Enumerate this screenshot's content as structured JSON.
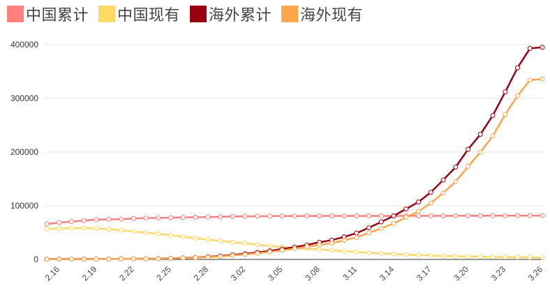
{
  "legend": [
    {
      "label": "中国累计",
      "color": "#ff7f7f"
    },
    {
      "label": "中国现有",
      "color": "#ffd966"
    },
    {
      "label": "海外累计",
      "color": "#990011"
    },
    {
      "label": "海外现有",
      "color": "#ffa64d"
    }
  ],
  "chart_data": {
    "type": "line",
    "title": "",
    "xlabel": "",
    "ylabel": "",
    "ylim": [
      0,
      400000
    ],
    "yticks": [
      "0",
      "100000",
      "200000",
      "300000",
      "400000"
    ],
    "grid": true,
    "legend_position": "top-left",
    "x": [
      "2.15",
      "2.16",
      "2.17",
      "2.18",
      "2.19",
      "2.20",
      "2.21",
      "2.22",
      "2.23",
      "2.24",
      "2.25",
      "2.26",
      "2.27",
      "2.28",
      "2.29",
      "3.01",
      "3.02",
      "3.03",
      "3.04",
      "3.05",
      "3.06",
      "3.07",
      "3.08",
      "3.09",
      "3.10",
      "3.11",
      "3.12",
      "3.13",
      "3.14",
      "3.15",
      "3.16",
      "3.17",
      "3.18",
      "3.19",
      "3.20",
      "3.21",
      "3.22",
      "3.23",
      "3.24",
      "3.25",
      "3.26"
    ],
    "xtick_labels": [
      "2.16",
      "2.19",
      "2.22",
      "2.25",
      "2.28",
      "3.02",
      "3.05",
      "3.08",
      "3.11",
      "3.14",
      "3.17",
      "3.20",
      "3.23",
      "3.26"
    ],
    "series": [
      {
        "name": "中国累计",
        "color": "#ff7f7f",
        "values": [
          66000,
          68500,
          70500,
          72400,
          74200,
          74600,
          75100,
          76300,
          77000,
          77300,
          77800,
          78200,
          78600,
          79000,
          79400,
          80000,
          80200,
          80400,
          80600,
          80800,
          80900,
          80900,
          81000,
          81000,
          81000,
          81100,
          81100,
          81100,
          81100,
          81200,
          81200,
          81200,
          81200,
          81300,
          81300,
          81300,
          81400,
          81400,
          81500,
          81600,
          81700
        ]
      },
      {
        "name": "中国现有",
        "color": "#ffd966",
        "values": [
          57000,
          57500,
          58000,
          58100,
          57800,
          56300,
          54500,
          52000,
          50000,
          47500,
          45000,
          42500,
          39500,
          37000,
          34500,
          32000,
          30000,
          27500,
          25000,
          23000,
          21500,
          20000,
          18500,
          17000,
          15500,
          14000,
          12500,
          11000,
          10000,
          9000,
          8000,
          7200,
          6500,
          5900,
          5400,
          5000,
          4700,
          4500,
          4300,
          4100,
          3800
        ]
      },
      {
        "name": "海外累计",
        "color": "#990011",
        "values": [
          500,
          600,
          700,
          800,
          900,
          1000,
          1100,
          1200,
          1400,
          1700,
          2100,
          2700,
          3600,
          4800,
          6400,
          8600,
          10500,
          13000,
          16000,
          19500,
          23000,
          27000,
          32000,
          36000,
          42000,
          49000,
          59000,
          70000,
          81000,
          94000,
          107000,
          125000,
          148000,
          172000,
          205000,
          233000,
          268000,
          312000,
          357000,
          393000,
          395000
        ]
      },
      {
        "name": "海外现有",
        "color": "#ffa64d",
        "values": [
          400,
          500,
          600,
          700,
          800,
          900,
          1000,
          1100,
          1300,
          1500,
          1900,
          2400,
          3200,
          4300,
          5600,
          7600,
          9200,
          11500,
          14000,
          17000,
          20000,
          23500,
          27000,
          30500,
          35500,
          41000,
          49500,
          58000,
          67000,
          78500,
          89500,
          105000,
          124000,
          145000,
          173000,
          200000,
          230000,
          270000,
          305000,
          334000,
          336000
        ]
      }
    ]
  }
}
